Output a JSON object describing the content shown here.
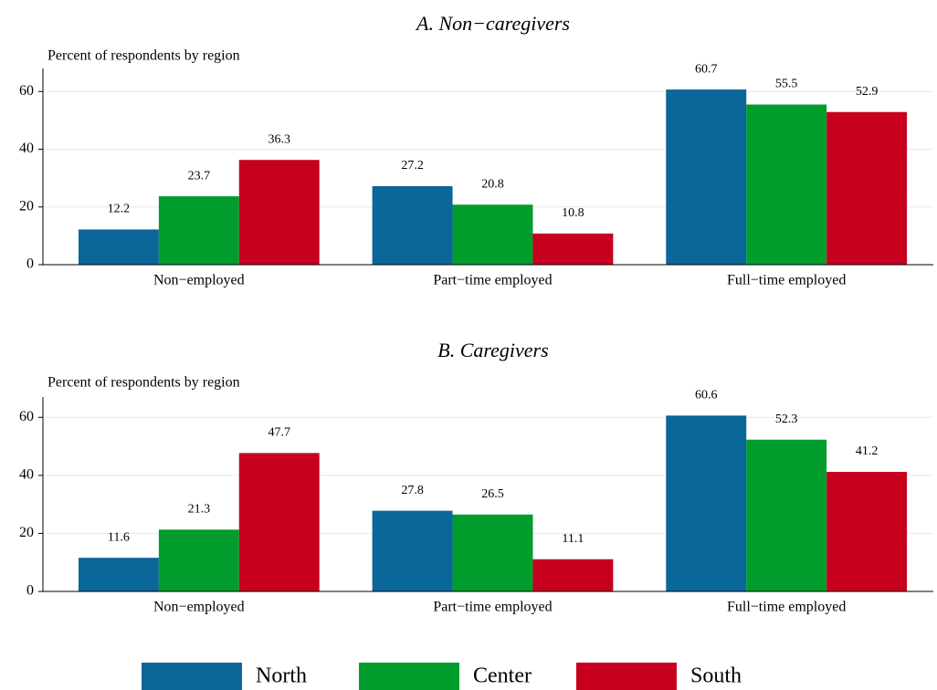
{
  "chart_data": [
    {
      "type": "bar",
      "title": "A. Non−caregivers",
      "y_label": "Percent of respondents by region",
      "categories": [
        "Non−employed",
        "Part−time employed",
        "Full−time employed"
      ],
      "series": [
        {
          "name": "North",
          "color": "#0b6699",
          "values": [
            12.2,
            27.2,
            60.7
          ]
        },
        {
          "name": "Center",
          "color": "#009c2c",
          "values": [
            23.7,
            20.8,
            55.5
          ]
        },
        {
          "name": "South",
          "color": "#c7001d",
          "values": [
            36.3,
            10.8,
            52.9
          ]
        }
      ],
      "ylim": [
        0,
        68
      ],
      "yticks": [
        0,
        20,
        40,
        60
      ],
      "grid": true,
      "legend": "bottom"
    },
    {
      "type": "bar",
      "title": "B. Caregivers",
      "y_label": "Percent of respondents by region",
      "categories": [
        "Non−employed",
        "Part−time employed",
        "Full−time employed"
      ],
      "series": [
        {
          "name": "North",
          "color": "#0b6699",
          "values": [
            11.6,
            27.8,
            60.6
          ]
        },
        {
          "name": "Center",
          "color": "#009c2c",
          "values": [
            21.3,
            26.5,
            52.3
          ]
        },
        {
          "name": "South",
          "color": "#c7001d",
          "values": [
            47.7,
            11.1,
            41.2
          ]
        }
      ],
      "ylim": [
        0,
        67
      ],
      "yticks": [
        0,
        20,
        40,
        60
      ],
      "grid": true,
      "legend": "bottom"
    }
  ]
}
